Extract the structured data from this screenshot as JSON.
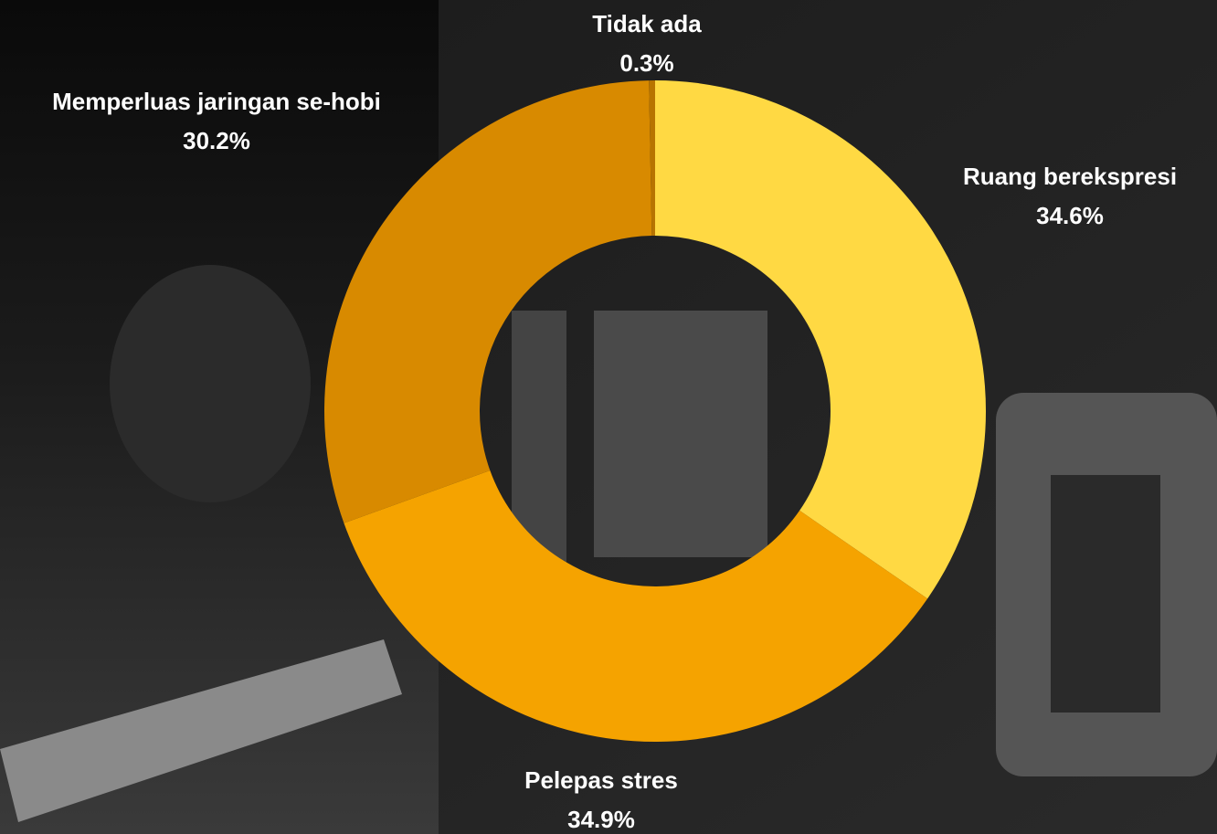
{
  "chart_data": {
    "type": "donut",
    "categories": [
      "Ruang berekspresi",
      "Pelepas stres",
      "Memperluas jaringan se-hobi",
      "Tidak ada"
    ],
    "values": [
      34.6,
      34.9,
      30.2,
      0.3
    ],
    "value_labels": [
      "34.6%",
      "34.9%",
      "30.2%",
      "0.3%"
    ],
    "colors": [
      "#ffd943",
      "#f5a300",
      "#d88a00",
      "#b87400"
    ]
  }
}
